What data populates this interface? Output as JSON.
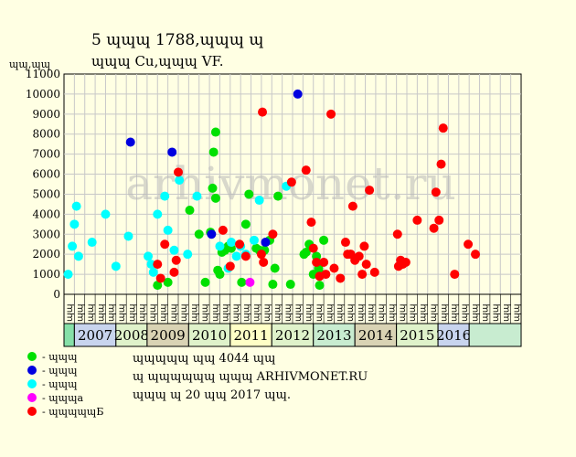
{
  "title_line1": "5 ɰɰɰ 1788,ɰɰɰ ɰ",
  "title_line2": "ɰɰɰ Cu,ɰɰɰ VF.",
  "watermark": "arhivmonet.ru",
  "legend": [
    {
      "label": "- ɰɰɰ",
      "color": "#00e000"
    },
    {
      "label": "- ɰɰɰ",
      "color": "#0000e0"
    },
    {
      "label": "- ɰɰɰ",
      "color": "#00ffff"
    },
    {
      "label": "- ɰɰɰa",
      "color": "#ff00ff"
    },
    {
      "label": "- ɰɰɰɰɰБ",
      "color": "#ff0000"
    }
  ],
  "notes": [
    "ɰɰɰɰɰ ɰɰ 4044 ɰɰ",
    "ɰ ɰɰɰɰɰɰ ɰɰɰ ARHIVMONET.RU",
    "ɰɰɰ ɰ 20 ɰɰ 2017 ɰɰ."
  ],
  "chart_data": {
    "type": "scatter",
    "ylabel": "ɰɰ,ɰɰ",
    "ylim": [
      0,
      11000
    ],
    "yticks": [
      0,
      1000,
      2000,
      3000,
      4000,
      5000,
      6000,
      7000,
      8000,
      9000,
      10000,
      11000
    ],
    "grid": true,
    "x_tick_labels": [
      "ɰɰ",
      "ɰɰ",
      "ɰɰ",
      "ɰɰ",
      "ɰɰ",
      "ɰɰ",
      "ɰɰ",
      "ɰɰ",
      "ɰɰ",
      "ɰɰ",
      "ɰɰ",
      "ɰɰ",
      "ɰɰ",
      "ɰɰ",
      "ɰɰ",
      "ɰɰ",
      "ɰɰ",
      "ɰɰ",
      "ɰɰ",
      "ɰɰ",
      "ɰɰ",
      "ɰɰ",
      "ɰɰ",
      "ɰɰ",
      "ɰɰ",
      "ɰɰ",
      "ɰɰ",
      "ɰɰ",
      "ɰɰ",
      "ɰɰ",
      "ɰɰ",
      "ɰɰ",
      "ɰɰ",
      "ɰɰ",
      "ɰɰ",
      "ɰɰ",
      "ɰɰ",
      "ɰɰ",
      "ɰɰ",
      "ɰɰ",
      "ɰɰ",
      "ɰɰ",
      "ɰɰ",
      "ɰɰ"
    ],
    "years": [
      {
        "label": "",
        "color": "#86e0a8",
        "span": [
          0,
          1
        ]
      },
      {
        "label": "2007",
        "color": "#c8d4ee",
        "span": [
          1,
          5
        ]
      },
      {
        "label": "2008",
        "color": "#dff2ca",
        "span": [
          5,
          8
        ]
      },
      {
        "label": "2009",
        "color": "#d9d3b4",
        "span": [
          8,
          12
        ]
      },
      {
        "label": "2010",
        "color": "#dff2ca",
        "span": [
          12,
          16
        ]
      },
      {
        "label": "2011",
        "color": "#ffffc6",
        "span": [
          16,
          20
        ]
      },
      {
        "label": "2012",
        "color": "#dff2ca",
        "span": [
          20,
          24
        ]
      },
      {
        "label": "2013",
        "color": "#c8ecd0",
        "span": [
          24,
          28
        ]
      },
      {
        "label": "2014",
        "color": "#d9d3b4",
        "span": [
          28,
          32
        ]
      },
      {
        "label": "2015",
        "color": "#dff2ca",
        "span": [
          32,
          36
        ]
      },
      {
        "label": "2016",
        "color": "#c8d4ee",
        "span": [
          36,
          39
        ]
      },
      {
        "label": "",
        "color": "#c8ecd0",
        "span": [
          39,
          44
        ]
      }
    ],
    "series": [
      {
        "color": "#00e000",
        "points": [
          [
            9.0,
            450
          ],
          [
            10.0,
            600
          ],
          [
            12.1,
            4200
          ],
          [
            13.0,
            3000
          ],
          [
            13.6,
            600
          ],
          [
            14.1,
            3100
          ],
          [
            14.4,
            7100
          ],
          [
            14.6,
            8100
          ],
          [
            14.3,
            5300
          ],
          [
            14.6,
            4800
          ],
          [
            14.8,
            1200
          ],
          [
            15.0,
            1000
          ],
          [
            15.2,
            2100
          ],
          [
            15.5,
            2200
          ],
          [
            15.8,
            2400
          ],
          [
            16.1,
            2300
          ],
          [
            17.1,
            600
          ],
          [
            17.5,
            3500
          ],
          [
            17.8,
            5000
          ],
          [
            18.5,
            2300
          ],
          [
            18.8,
            2200
          ],
          [
            19.3,
            2200
          ],
          [
            19.8,
            2700
          ],
          [
            20.1,
            500
          ],
          [
            20.3,
            1300
          ],
          [
            20.6,
            4900
          ],
          [
            21.8,
            500
          ],
          [
            23.1,
            2000
          ],
          [
            23.3,
            2100
          ],
          [
            23.6,
            2500
          ],
          [
            24.0,
            1000
          ],
          [
            24.3,
            1900
          ],
          [
            24.5,
            1300
          ],
          [
            24.6,
            450
          ],
          [
            24.8,
            1000
          ],
          [
            25.0,
            2700
          ]
        ]
      },
      {
        "color": "#0000e0",
        "points": [
          [
            6.4,
            7600
          ],
          [
            10.4,
            7100
          ],
          [
            14.2,
            3000
          ],
          [
            19.4,
            2600
          ],
          [
            22.5,
            10000
          ]
        ]
      },
      {
        "color": "#00ffff",
        "points": [
          [
            0.4,
            1000
          ],
          [
            0.8,
            2400
          ],
          [
            1.0,
            3500
          ],
          [
            1.2,
            4400
          ],
          [
            1.4,
            1900
          ],
          [
            2.7,
            2600
          ],
          [
            4.0,
            4000
          ],
          [
            5.0,
            1400
          ],
          [
            6.2,
            2900
          ],
          [
            8.1,
            1900
          ],
          [
            8.4,
            1500
          ],
          [
            8.6,
            1100
          ],
          [
            9.0,
            4000
          ],
          [
            9.7,
            4900
          ],
          [
            10.0,
            3200
          ],
          [
            10.6,
            2200
          ],
          [
            11.1,
            5700
          ],
          [
            11.9,
            2000
          ],
          [
            12.8,
            4900
          ],
          [
            15.0,
            2400
          ],
          [
            15.8,
            1300
          ],
          [
            16.1,
            2600
          ],
          [
            16.6,
            1900
          ],
          [
            17.0,
            2400
          ],
          [
            17.5,
            2000
          ],
          [
            18.3,
            2700
          ],
          [
            18.8,
            4700
          ],
          [
            21.4,
            5400
          ]
        ]
      },
      {
        "color": "#ff00ff",
        "points": [
          [
            17.9,
            600
          ]
        ]
      },
      {
        "color": "#ff0000",
        "points": [
          [
            9.0,
            1500
          ],
          [
            9.3,
            800
          ],
          [
            9.7,
            2500
          ],
          [
            10.6,
            1100
          ],
          [
            10.8,
            1700
          ],
          [
            11.0,
            6100
          ],
          [
            15.3,
            3200
          ],
          [
            16.0,
            1400
          ],
          [
            16.9,
            2500
          ],
          [
            17.5,
            1900
          ],
          [
            19.0,
            2000
          ],
          [
            19.1,
            9100
          ],
          [
            19.2,
            1600
          ],
          [
            20.1,
            3000
          ],
          [
            21.9,
            5600
          ],
          [
            23.3,
            6200
          ],
          [
            23.8,
            3600
          ],
          [
            24.0,
            2300
          ],
          [
            24.3,
            1600
          ],
          [
            24.6,
            900
          ],
          [
            25.0,
            1600
          ],
          [
            25.2,
            1000
          ],
          [
            25.7,
            9000
          ],
          [
            26.0,
            1300
          ],
          [
            26.6,
            800
          ],
          [
            27.1,
            2600
          ],
          [
            27.3,
            2000
          ],
          [
            27.6,
            2000
          ],
          [
            27.8,
            4400
          ],
          [
            28.0,
            1700
          ],
          [
            28.4,
            1900
          ],
          [
            28.7,
            1000
          ],
          [
            28.9,
            2400
          ],
          [
            29.1,
            1500
          ],
          [
            29.4,
            5200
          ],
          [
            29.9,
            1100
          ],
          [
            32.1,
            3000
          ],
          [
            32.2,
            1400
          ],
          [
            32.4,
            1700
          ],
          [
            32.6,
            1500
          ],
          [
            32.9,
            1600
          ],
          [
            34.0,
            3700
          ],
          [
            35.6,
            3300
          ],
          [
            35.8,
            5100
          ],
          [
            36.1,
            3700
          ],
          [
            36.3,
            6500
          ],
          [
            36.5,
            8300
          ],
          [
            37.6,
            1000
          ],
          [
            38.9,
            2500
          ],
          [
            39.6,
            2000
          ]
        ]
      }
    ]
  }
}
